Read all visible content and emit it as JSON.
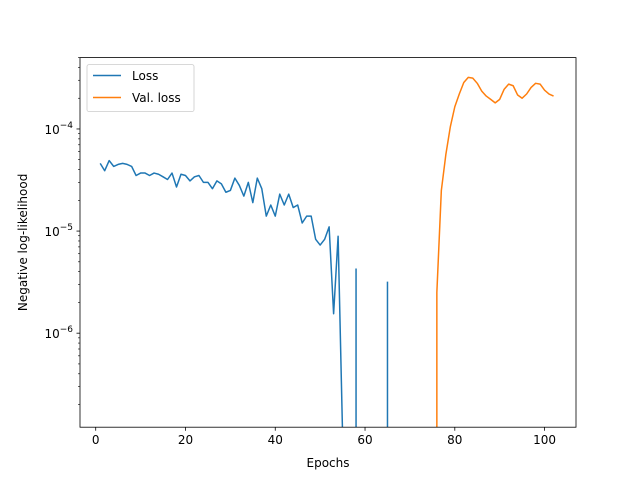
{
  "chart_data": {
    "type": "line",
    "xlabel": "Epochs",
    "ylabel": "Negative log-likelihood",
    "yscale": "log",
    "xlim": [
      -3.5,
      107
    ],
    "ylim": [
      1.2e-07,
      0.0005
    ],
    "x_ticks": [
      0,
      20,
      40,
      60,
      80,
      100
    ],
    "x_tick_labels": [
      "0",
      "20",
      "40",
      "60",
      "80",
      "100"
    ],
    "y_ticks": [
      {
        "value": 1e-06,
        "base": "10",
        "exp": "−6"
      },
      {
        "value": 1e-05,
        "base": "10",
        "exp": "−5"
      },
      {
        "value": 0.0001,
        "base": "10",
        "exp": "−4"
      }
    ],
    "legend_position": "upper-left",
    "grid": false,
    "series": [
      {
        "name": "Loss",
        "color": "#1f77b4",
        "segments": [
          [
            [
              1,
              4.6e-05
            ],
            [
              2,
              3.9e-05
            ],
            [
              3,
              4.9e-05
            ],
            [
              4,
              4.3e-05
            ],
            [
              5,
              4.5e-05
            ],
            [
              6,
              4.6e-05
            ],
            [
              7,
              4.5e-05
            ],
            [
              8,
              4.3e-05
            ],
            [
              9,
              3.5e-05
            ],
            [
              10,
              3.7e-05
            ],
            [
              11,
              3.7e-05
            ],
            [
              12,
              3.5e-05
            ],
            [
              13,
              3.7e-05
            ],
            [
              14,
              3.6e-05
            ],
            [
              15,
              3.4e-05
            ],
            [
              16,
              3.2e-05
            ],
            [
              17,
              3.7e-05
            ],
            [
              18,
              2.7e-05
            ],
            [
              19,
              3.6e-05
            ],
            [
              20,
              3.5e-05
            ],
            [
              21,
              3.1e-05
            ],
            [
              22,
              3.4e-05
            ],
            [
              23,
              3.5e-05
            ],
            [
              24,
              3e-05
            ],
            [
              25,
              3e-05
            ],
            [
              26,
              2.6e-05
            ],
            [
              27,
              3.1e-05
            ],
            [
              28,
              2.9e-05
            ],
            [
              29,
              2.4e-05
            ],
            [
              30,
              2.5e-05
            ],
            [
              31,
              3.3e-05
            ],
            [
              32,
              2.8e-05
            ],
            [
              33,
              2.2e-05
            ],
            [
              34,
              3e-05
            ],
            [
              35,
              1.9e-05
            ],
            [
              36,
              3.3e-05
            ],
            [
              37,
              2.6e-05
            ],
            [
              38,
              1.4e-05
            ],
            [
              39,
              1.8e-05
            ],
            [
              40,
              1.4e-05
            ],
            [
              41,
              2.3e-05
            ],
            [
              42,
              1.8e-05
            ],
            [
              43,
              2.3e-05
            ],
            [
              44,
              1.7e-05
            ],
            [
              45,
              1.8e-05
            ],
            [
              46,
              1.2e-05
            ],
            [
              47,
              1.4e-05
            ],
            [
              48,
              1.4e-05
            ],
            [
              49,
              8.3e-06
            ],
            [
              50,
              7.3e-06
            ],
            [
              51,
              8.3e-06
            ],
            [
              52,
              1.1e-05
            ],
            [
              53,
              1.55e-06
            ],
            [
              54,
              8.9e-06
            ],
            [
              55,
              1e-07
            ]
          ],
          [
            [
              58,
              4.3e-06
            ],
            [
              58,
              1e-07
            ]
          ],
          [
            [
              65,
              3.2e-06
            ],
            [
              65,
              1e-07
            ]
          ]
        ]
      },
      {
        "name": "Val. loss",
        "color": "#ff7f0e",
        "segments": [
          [
            [
              76,
              1e-07
            ],
            [
              76,
              2.5e-06
            ],
            [
              77,
              2.5e-05
            ],
            [
              78,
              5.6e-05
            ],
            [
              79,
              0.000105
            ],
            [
              80,
              0.000165
            ],
            [
              81,
              0.00022
            ],
            [
              82,
              0.000285
            ],
            [
              83,
              0.00032
            ],
            [
              84,
              0.000315
            ],
            [
              85,
              0.00028
            ],
            [
              86,
              0.000235
            ],
            [
              87,
              0.00021
            ],
            [
              88,
              0.000195
            ],
            [
              89,
              0.00018
            ],
            [
              90,
              0.000195
            ],
            [
              91,
              0.000245
            ],
            [
              92,
              0.000275
            ],
            [
              93,
              0.000265
            ],
            [
              94,
              0.000215
            ],
            [
              95,
              0.0002
            ],
            [
              96,
              0.00022
            ],
            [
              97,
              0.000255
            ],
            [
              98,
              0.00028
            ],
            [
              99,
              0.000275
            ],
            [
              100,
              0.00024
            ],
            [
              101,
              0.00022
            ],
            [
              102,
              0.00021
            ]
          ]
        ]
      }
    ]
  }
}
